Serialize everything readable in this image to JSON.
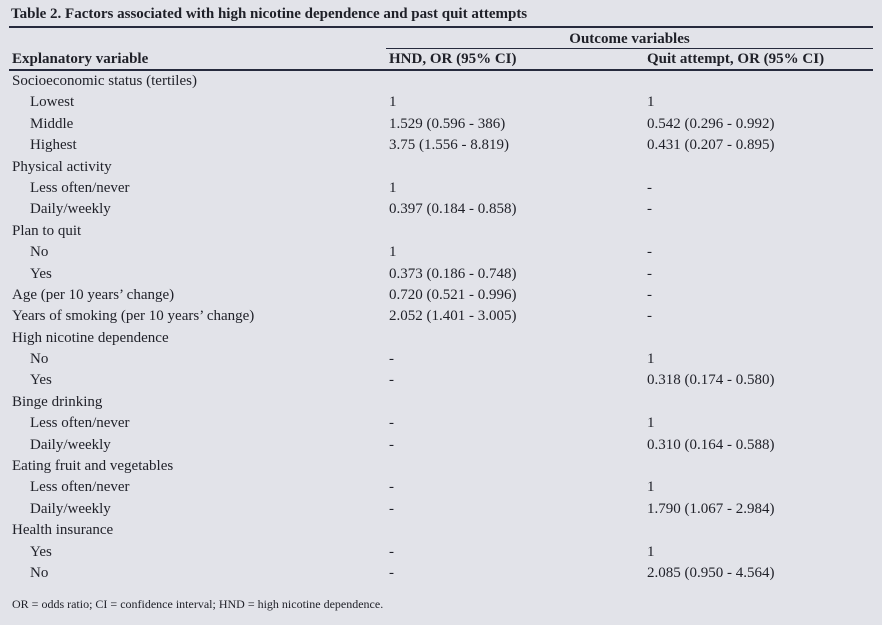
{
  "title": "Table 2. Factors associated with high nicotine dependence and past quit attempts",
  "header": {
    "outcome_group": "Outcome variables",
    "col_explanatory": "Explanatory variable",
    "col_hnd": "HND, OR (95% CI)",
    "col_quit": "Quit attempt, OR (95% CI)"
  },
  "table": {
    "rows": [
      {
        "label": "Socioeconomic status (tertiles)",
        "indent": false,
        "hnd": "",
        "quit": ""
      },
      {
        "label": "Lowest",
        "indent": true,
        "hnd": "1",
        "quit": "1"
      },
      {
        "label": "Middle",
        "indent": true,
        "hnd": "1.529 (0.596 - 386)",
        "quit": "0.542 (0.296 - 0.992)"
      },
      {
        "label": "Highest",
        "indent": true,
        "hnd": "3.75 (1.556 - 8.819)",
        "quit": "0.431 (0.207 - 0.895)"
      },
      {
        "label": "Physical activity",
        "indent": false,
        "hnd": "",
        "quit": ""
      },
      {
        "label": "Less often/never",
        "indent": true,
        "hnd": "1",
        "quit": "-"
      },
      {
        "label": "Daily/weekly",
        "indent": true,
        "hnd": "0.397 (0.184 - 0.858)",
        "quit": "-"
      },
      {
        "label": "Plan to quit",
        "indent": false,
        "hnd": "",
        "quit": ""
      },
      {
        "label": "No",
        "indent": true,
        "hnd": "1",
        "quit": "-"
      },
      {
        "label": "Yes",
        "indent": true,
        "hnd": "0.373 (0.186 - 0.748)",
        "quit": "-"
      },
      {
        "label": "Age (per 10 years’ change)",
        "indent": false,
        "hnd": "0.720 (0.521 - 0.996)",
        "quit": "-"
      },
      {
        "label": "Years of smoking (per 10 years’ change)",
        "indent": false,
        "hnd": "2.052 (1.401 - 3.005)",
        "quit": "-"
      },
      {
        "label": "High nicotine dependence",
        "indent": false,
        "hnd": "",
        "quit": ""
      },
      {
        "label": "No",
        "indent": true,
        "hnd": "-",
        "quit": "1"
      },
      {
        "label": "Yes",
        "indent": true,
        "hnd": "-",
        "quit": "0.318 (0.174 - 0.580)"
      },
      {
        "label": "Binge drinking",
        "indent": false,
        "hnd": "",
        "quit": ""
      },
      {
        "label": "Less often/never",
        "indent": true,
        "hnd": "-",
        "quit": "1"
      },
      {
        "label": "Daily/weekly",
        "indent": true,
        "hnd": "-",
        "quit": "0.310 (0.164 - 0.588)"
      },
      {
        "label": "Eating fruit and vegetables",
        "indent": false,
        "hnd": "",
        "quit": ""
      },
      {
        "label": "Less often/never",
        "indent": true,
        "hnd": "-",
        "quit": "1"
      },
      {
        "label": "Daily/weekly",
        "indent": true,
        "hnd": "-",
        "quit": "1.790 (1.067 - 2.984)"
      },
      {
        "label": "Health insurance",
        "indent": false,
        "hnd": "",
        "quit": ""
      },
      {
        "label": "Yes",
        "indent": true,
        "hnd": "-",
        "quit": "1"
      },
      {
        "label": "No",
        "indent": true,
        "hnd": "-",
        "quit": "2.085 (0.950 - 4.564)"
      }
    ]
  },
  "footnote": "OR = odds ratio; CI = confidence interval; HND = high nicotine dependence.",
  "colors": {
    "background": "#e2e3e9",
    "text": "#1f2028",
    "rule": "#262a3d"
  }
}
